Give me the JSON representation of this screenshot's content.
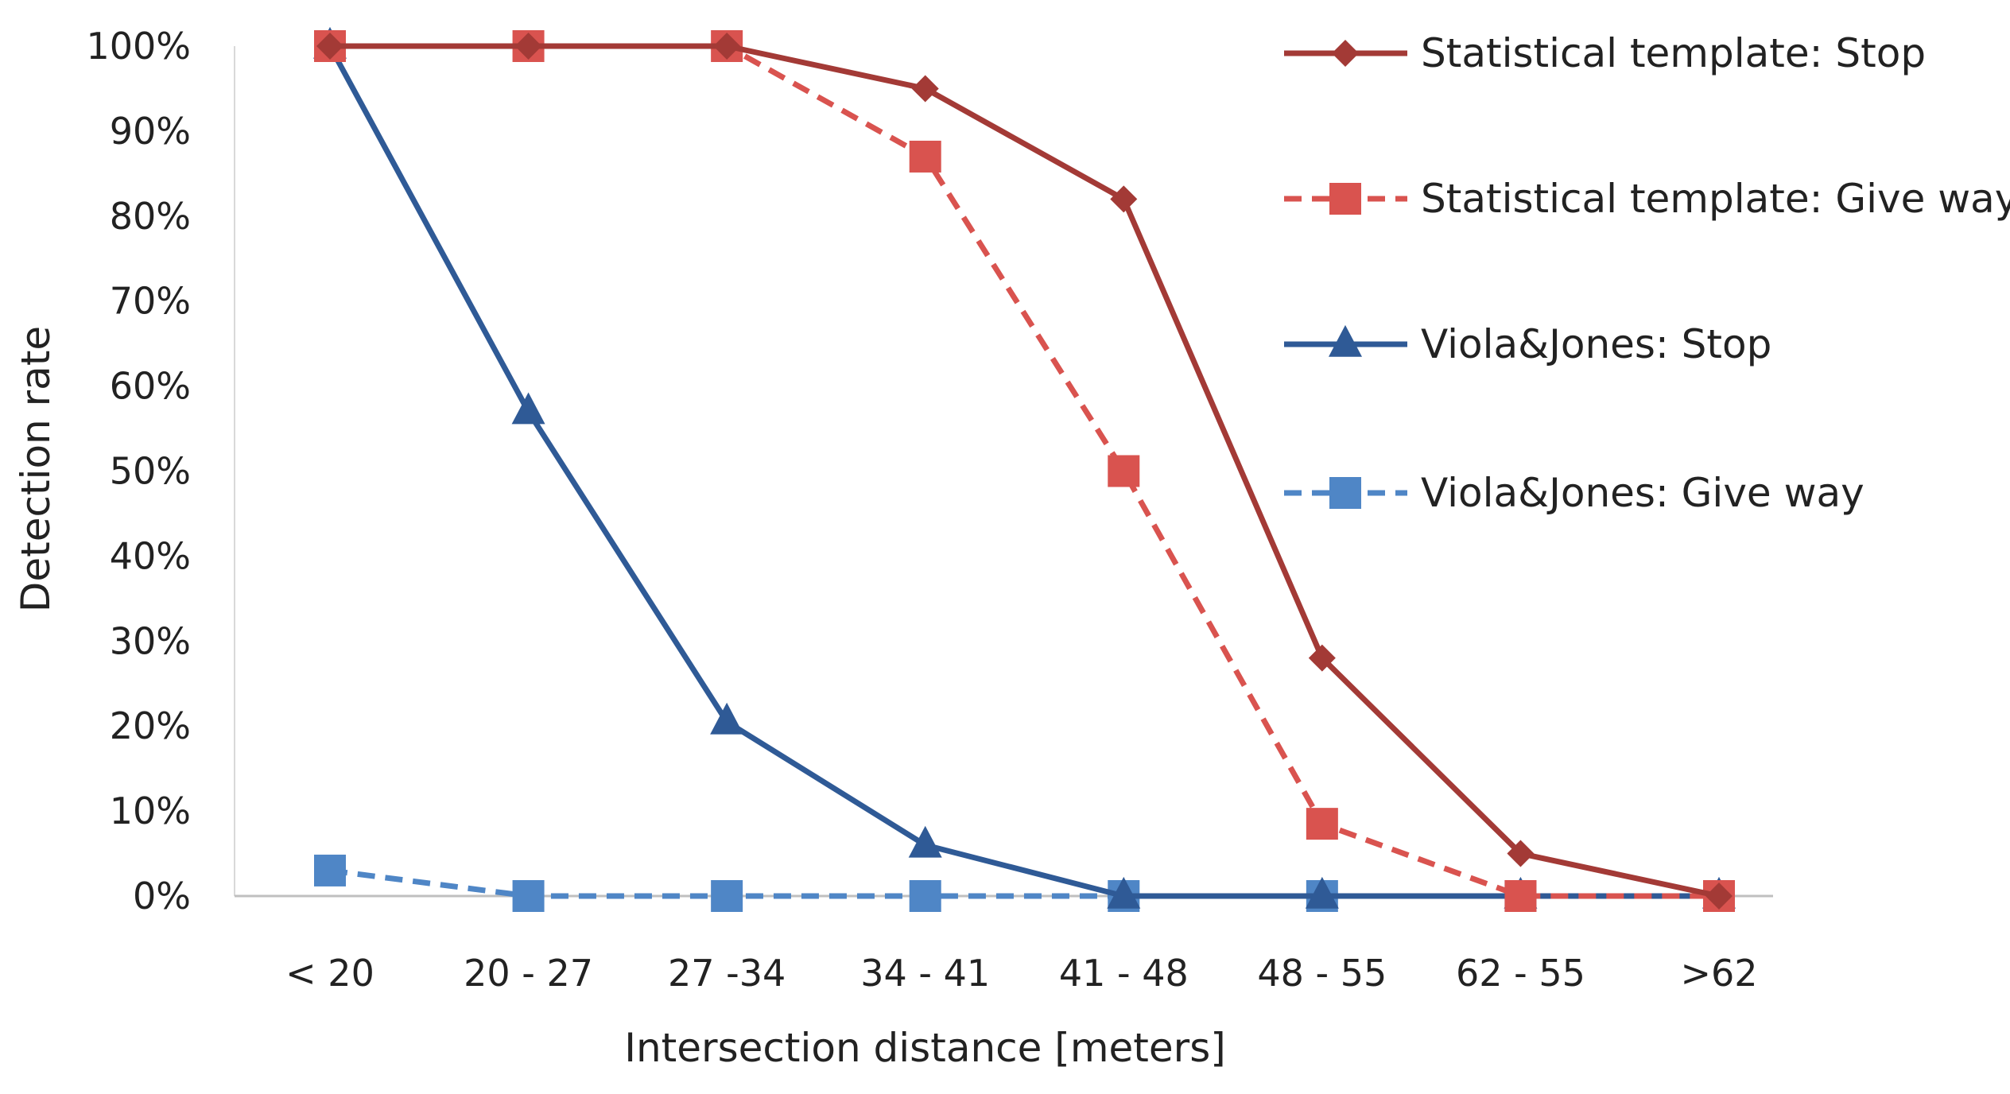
{
  "chart_data": {
    "type": "line",
    "title": "",
    "xlabel": "Intersection distance [meters]",
    "ylabel": "Detection rate",
    "ylim": [
      0,
      100
    ],
    "ytick_step": 10,
    "y_tick_suffix": "%",
    "grid": false,
    "legend_position": "top-right",
    "categories": [
      "< 20",
      "20 - 27",
      "27 -34",
      "34 - 41",
      "41 - 48",
      "48 - 55",
      "62 - 55",
      ">62"
    ],
    "series": [
      {
        "name": "Statistical template: Stop",
        "values": [
          100,
          100,
          100,
          95,
          82,
          28,
          5,
          0
        ],
        "color": "#a33a36",
        "dashed": false,
        "marker": "diamond"
      },
      {
        "name": "Statistical template: Give way",
        "values": [
          100,
          100,
          100,
          87,
          50,
          8.5,
          0,
          0
        ],
        "color": "#d9534f",
        "dashed": true,
        "marker": "square"
      },
      {
        "name": "Viola&Jones: Stop",
        "values": [
          100,
          57,
          20.5,
          6,
          0,
          0,
          0,
          0
        ],
        "color": "#2f5a96",
        "dashed": false,
        "marker": "triangle"
      },
      {
        "name": "Viola&Jones: Give way",
        "values": [
          3,
          0,
          0,
          0,
          0,
          0,
          0,
          0
        ],
        "color": "#4f86c6",
        "dashed": true,
        "marker": "square"
      }
    ]
  }
}
